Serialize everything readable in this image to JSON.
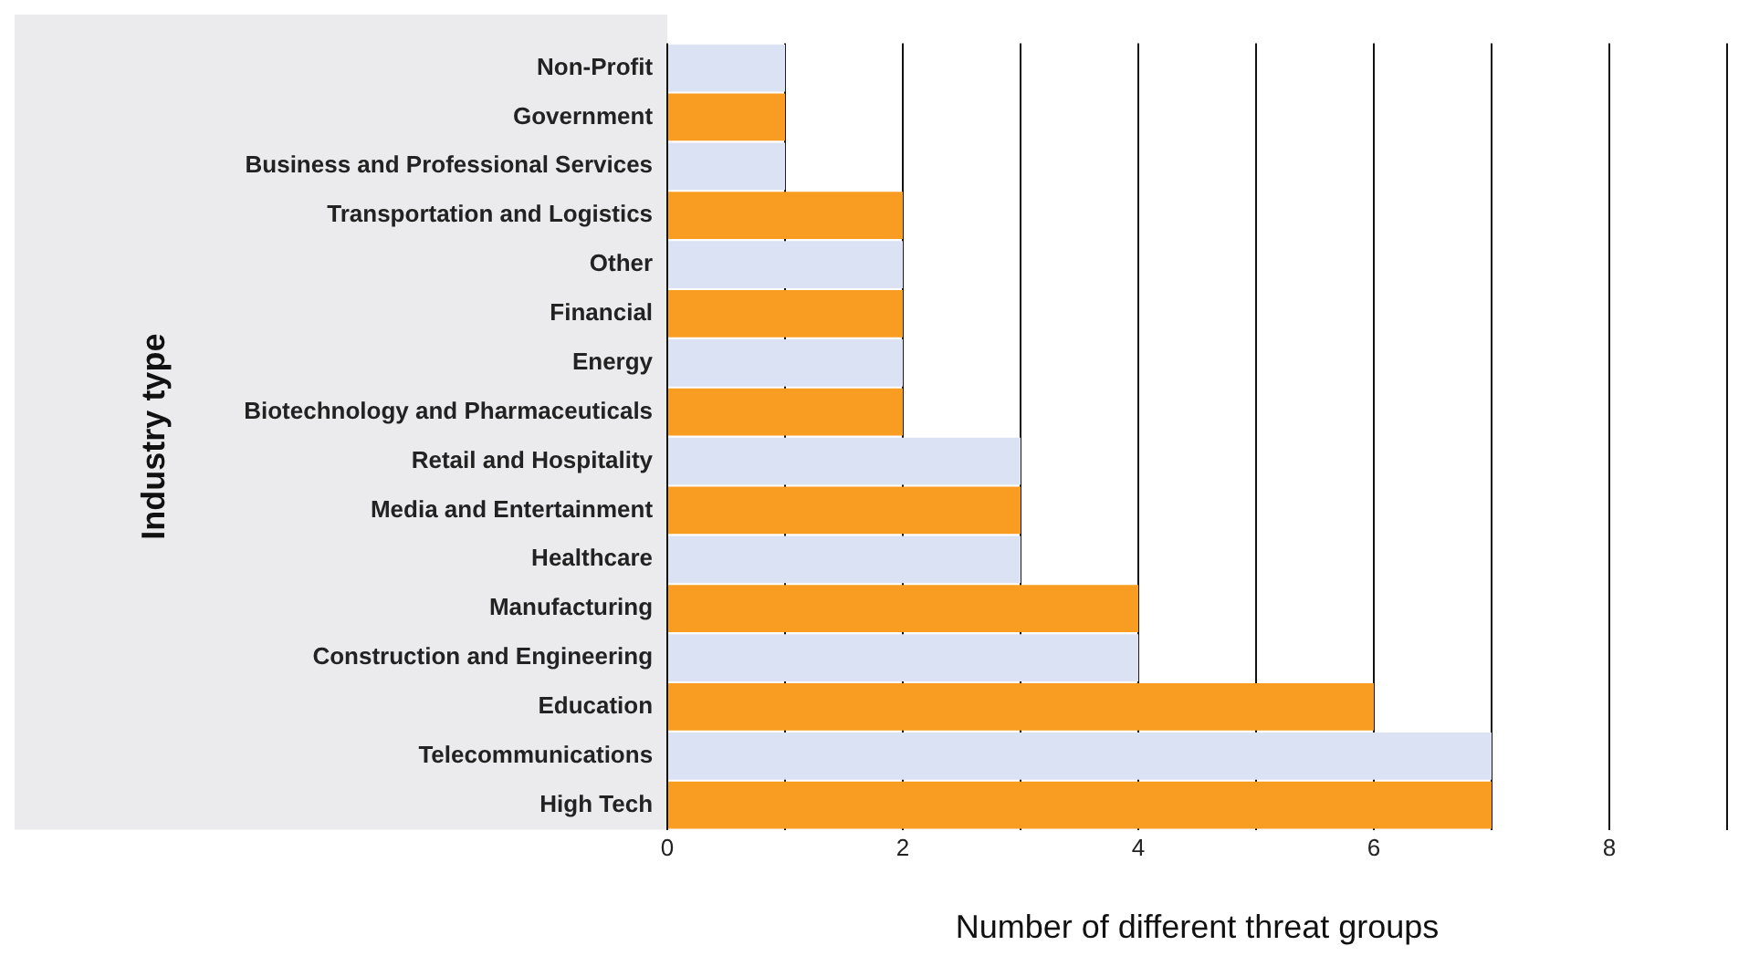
{
  "chart_data": {
    "type": "bar",
    "orientation": "horizontal",
    "xlabel": "Number of different threat groups",
    "ylabel": "Industry type",
    "categories": [
      "Non-Profit",
      "Government",
      "Business and Professional Services",
      "Transportation and Logistics",
      "Other",
      "Financial",
      "Energy",
      "Biotechnology and Pharmaceuticals",
      "Retail and Hospitality",
      "Media and Entertainment",
      "Healthcare",
      "Manufacturing",
      "Construction and Engineering",
      "Education",
      "Telecommunications",
      "High Tech"
    ],
    "values": [
      1,
      1,
      1,
      2,
      2,
      2,
      2,
      2,
      3,
      3,
      3,
      4,
      4,
      6,
      7,
      7
    ],
    "colors": [
      "#dae2f4",
      "#f89c22",
      "#dae2f4",
      "#f89c22",
      "#dae2f4",
      "#f89c22",
      "#dae2f4",
      "#f89c22",
      "#dae2f4",
      "#f89c22",
      "#dae2f4",
      "#f89c22",
      "#dae2f4",
      "#f89c22",
      "#dae2f4",
      "#f89c22"
    ],
    "xlim": [
      0,
      9
    ],
    "xticks": [
      0,
      {
        "value": 1,
        "label": null
      },
      2,
      {
        "value": 3,
        "label": null
      },
      4,
      {
        "value": 5,
        "label": null
      },
      6,
      {
        "value": 7,
        "label": null
      },
      8,
      {
        "value": 9,
        "label": null
      }
    ],
    "grid": "x",
    "legend": false
  }
}
